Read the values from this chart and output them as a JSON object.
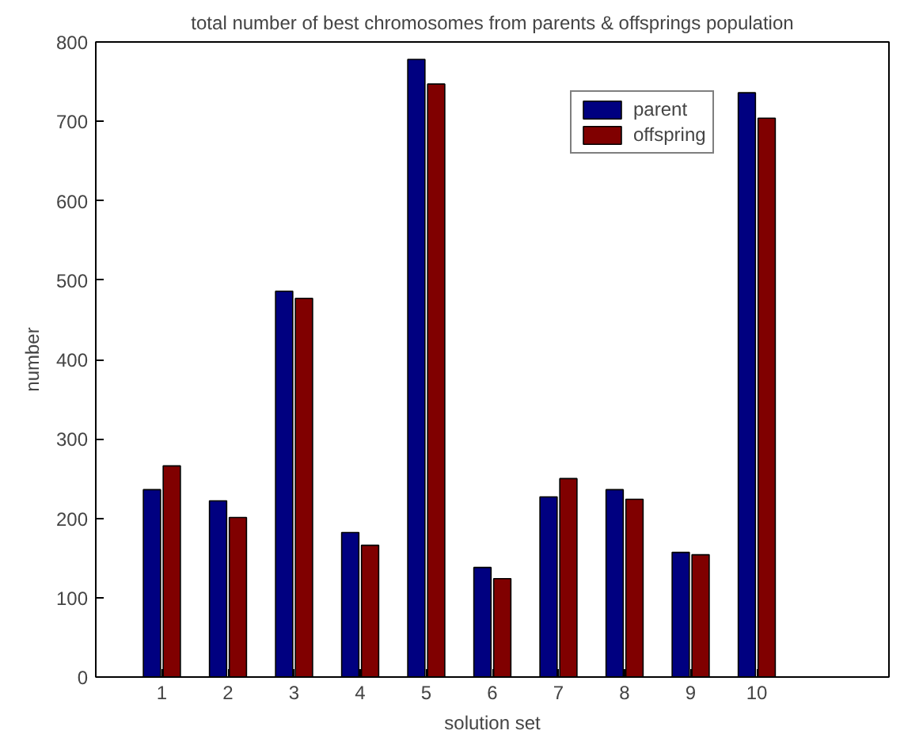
{
  "chart_data": {
    "type": "bar",
    "title": "total number of best chromosomes from parents & offsprings population",
    "xlabel": "solution set",
    "ylabel": "number",
    "x": [
      1,
      2,
      3,
      4,
      5,
      6,
      7,
      8,
      9,
      10
    ],
    "xlim": [
      0,
      12
    ],
    "xticks": [
      1,
      2,
      3,
      4,
      5,
      6,
      7,
      8,
      9,
      10
    ],
    "ylim": [
      0,
      800
    ],
    "yticks": [
      0,
      100,
      200,
      300,
      400,
      500,
      600,
      700,
      800
    ],
    "series": [
      {
        "name": "parent",
        "color": "#000080",
        "values": [
          236,
          222,
          486,
          182,
          778,
          138,
          227,
          236,
          157,
          736
        ]
      },
      {
        "name": "offspring",
        "color": "#800000",
        "values": [
          266,
          201,
          477,
          166,
          747,
          124,
          250,
          224,
          154,
          704
        ]
      }
    ],
    "grid": false,
    "legend": "top right"
  }
}
